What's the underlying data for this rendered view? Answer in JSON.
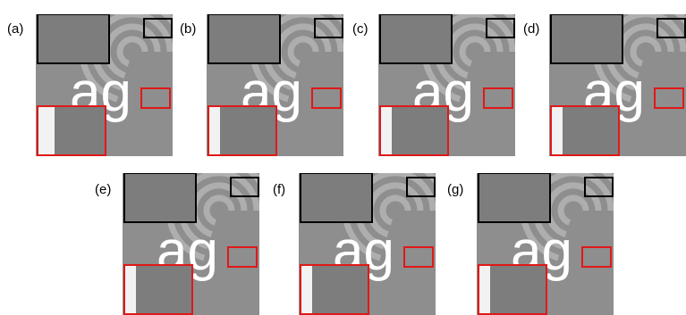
{
  "figure": {
    "panels": [
      {
        "id": "a",
        "label": "(a)"
      },
      {
        "id": "b",
        "label": "(b)"
      },
      {
        "id": "c",
        "label": "(c)"
      },
      {
        "id": "d",
        "label": "(d)"
      },
      {
        "id": "e",
        "label": "(e)"
      },
      {
        "id": "f",
        "label": "(f)"
      },
      {
        "id": "g",
        "label": "(g)"
      }
    ],
    "image_text": "ag",
    "colors": {
      "background_gray": "#8e8e8e",
      "spiral": "#b4b4b4",
      "text": "#ffffff",
      "zoom_box_black": "#000000",
      "zoom_box_red": "#e01818",
      "zoom_inset_gray": "#7d7d7d"
    }
  }
}
